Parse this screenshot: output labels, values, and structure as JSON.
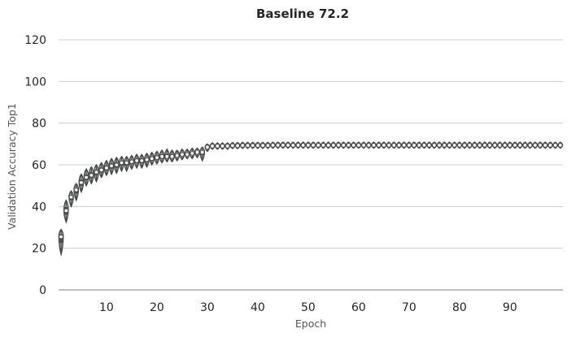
{
  "chart_data": {
    "type": "violin",
    "title": "Baseline 72.2",
    "xlabel": "Epoch",
    "ylabel": "Validation Accuracy Top1",
    "ylim": [
      0,
      120
    ],
    "yticks": [
      0,
      20,
      40,
      60,
      80,
      100,
      120
    ],
    "xticks": [
      10,
      20,
      30,
      40,
      50,
      60,
      70,
      80,
      90
    ],
    "x": [
      1,
      2,
      3,
      4,
      5,
      6,
      7,
      8,
      9,
      10,
      11,
      12,
      13,
      14,
      15,
      16,
      17,
      18,
      19,
      20,
      21,
      22,
      23,
      24,
      25,
      26,
      27,
      28,
      29,
      30,
      31,
      32,
      33,
      34,
      35,
      36,
      37,
      38,
      39,
      40,
      41,
      42,
      43,
      44,
      45,
      46,
      47,
      48,
      49,
      50,
      51,
      52,
      53,
      54,
      55,
      56,
      57,
      58,
      59,
      60,
      61,
      62,
      63,
      64,
      65,
      66,
      67,
      68,
      69,
      70,
      71,
      72,
      73,
      74,
      75,
      76,
      77,
      78,
      79,
      80,
      81,
      82,
      83,
      84,
      85,
      86,
      87,
      88,
      89,
      90,
      91,
      92,
      93,
      94,
      95,
      96,
      97,
      98,
      99,
      100
    ],
    "median": [
      25.5,
      38,
      44.5,
      48,
      51.5,
      54,
      55,
      56.5,
      57.5,
      58.5,
      59.5,
      60,
      61,
      61,
      61.5,
      62,
      62,
      62.5,
      63,
      63.5,
      64,
      64,
      64,
      64.5,
      65,
      65,
      65.5,
      66,
      66,
      68.5,
      69,
      69,
      69,
      69,
      69.2,
      69.2,
      69.3,
      69.3,
      69.3,
      69.3,
      69.3,
      69.3,
      69.4,
      69.4,
      69.4,
      69.4,
      69.4,
      69.4,
      69.4,
      69.4,
      69.4,
      69.4,
      69.4,
      69.4,
      69.4,
      69.4,
      69.4,
      69.4,
      69.4,
      69.4,
      69.4,
      69.4,
      69.4,
      69.4,
      69.4,
      69.4,
      69.4,
      69.4,
      69.4,
      69.4,
      69.4,
      69.4,
      69.4,
      69.4,
      69.4,
      69.4,
      69.4,
      69.4,
      69.4,
      69.4,
      69.4,
      69.4,
      69.4,
      69.4,
      69.4,
      69.4,
      69.4,
      69.4,
      69.4,
      69.4,
      69.4,
      69.4,
      69.4,
      69.4,
      69.4,
      69.4,
      69.4,
      69.4,
      69.4,
      69.4
    ],
    "min": [
      17,
      32.5,
      40,
      43,
      47,
      50,
      51,
      52,
      54,
      55,
      55.5,
      56,
      57,
      57,
      58,
      58.5,
      58.5,
      59,
      60,
      60.5,
      61,
      61.5,
      61.5,
      62,
      62.5,
      63,
      63,
      63.5,
      62,
      66.5,
      67.5,
      67.5,
      67.5,
      67.5,
      67.8,
      67.8,
      67.9,
      67.9,
      67.9,
      67.9,
      67.9,
      67.9,
      68,
      68,
      68,
      68,
      68,
      68,
      68,
      68,
      68,
      68,
      68,
      68,
      68,
      68,
      68,
      68,
      68,
      68,
      68,
      68,
      68,
      68,
      68,
      68,
      68,
      68,
      68,
      68,
      68,
      68,
      68,
      68,
      68,
      68,
      68,
      68,
      68,
      68,
      68,
      68,
      68,
      68,
      68,
      68,
      68,
      68,
      68,
      68,
      68,
      68,
      68,
      68,
      68,
      68,
      68,
      68,
      68,
      68
    ],
    "max": [
      29,
      43,
      47.5,
      51,
      55.5,
      58,
      59,
      60,
      61,
      62,
      63,
      63.5,
      64,
      64,
      64.5,
      65,
      65,
      65.5,
      66,
      66.5,
      67,
      67.5,
      67,
      67,
      67.5,
      67.5,
      68,
      68,
      68.5,
      70,
      70.5,
      70.5,
      70.5,
      70.5,
      70.7,
      70.7,
      70.8,
      70.8,
      70.8,
      70.8,
      70.8,
      70.8,
      70.9,
      70.9,
      70.9,
      70.9,
      70.9,
      70.9,
      70.9,
      70.9,
      70.9,
      70.9,
      70.9,
      70.9,
      70.9,
      70.9,
      70.9,
      70.9,
      70.9,
      70.9,
      70.9,
      70.9,
      70.9,
      70.9,
      70.9,
      70.9,
      70.9,
      70.9,
      70.9,
      70.9,
      70.9,
      70.9,
      70.9,
      70.9,
      70.9,
      70.9,
      70.9,
      70.9,
      70.9,
      70.9,
      70.9,
      70.9,
      70.9,
      70.9,
      70.9,
      70.9,
      70.9,
      70.9,
      70.9,
      70.9,
      70.9,
      70.9,
      70.9,
      70.9,
      70.9,
      70.9,
      70.9,
      70.9,
      70.9,
      70.9
    ],
    "grid": true,
    "legend": "none",
    "colors": {
      "violin_fill": "#cfd6dd",
      "violin_edge": "#4a4a4a",
      "box": "#4a4a4a",
      "median_dot": "#ffffff",
      "grid": "#cccccc",
      "axis": "#999999"
    }
  }
}
